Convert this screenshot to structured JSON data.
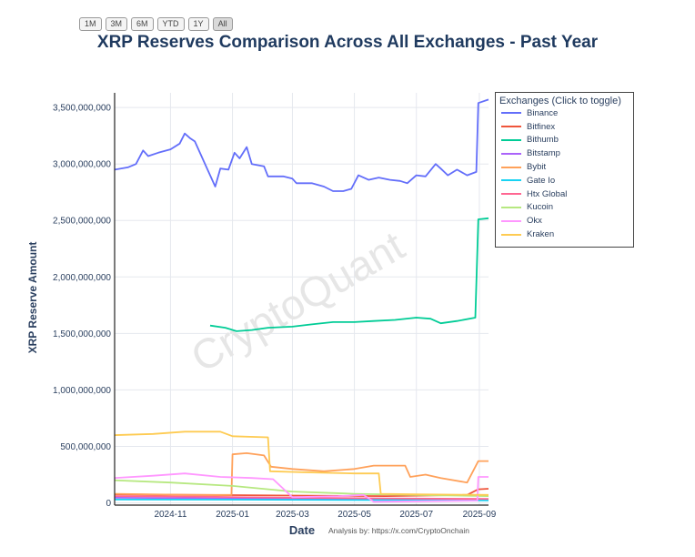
{
  "range_buttons": [
    "1M",
    "3M",
    "6M",
    "YTD",
    "1Y",
    "All"
  ],
  "active_range": "All",
  "credit": "Analysis by: https://x.com/CryptoOnchain",
  "watermark": "CryptoQuant",
  "chart_data": {
    "type": "line",
    "title": "XRP Reserves Comparison Across All Exchanges - Past Year",
    "xlabel": "Date",
    "ylabel": "XRP Reserve Amount",
    "legend_title": "Exchanges (Click to toggle)",
    "legend_position": "right",
    "grid": true,
    "x_range": [
      "2024-09-07",
      "2025-09-10"
    ],
    "ylim": [
      -20000000,
      3630000000
    ],
    "x_ticks": [
      "2024-11",
      "2025-01",
      "2025-03",
      "2025-05",
      "2025-07",
      "2025-09"
    ],
    "y_ticks": [
      {
        "value": 0,
        "label": "0"
      },
      {
        "value": 500000000,
        "label": "500,000,000"
      },
      {
        "value": 1000000000,
        "label": "1,000,000,000"
      },
      {
        "value": 1500000000,
        "label": "1,500,000,000"
      },
      {
        "value": 2000000000,
        "label": "2,000,000,000"
      },
      {
        "value": 2500000000,
        "label": "2,500,000,000"
      },
      {
        "value": 3000000000,
        "label": "3,000,000,000"
      },
      {
        "value": 3500000000,
        "label": "3,500,000,000"
      }
    ],
    "series": [
      {
        "name": "Binance",
        "color": "#636efa",
        "points": [
          [
            "2024-09-07",
            2950000000
          ],
          [
            "2024-09-20",
            2970000000
          ],
          [
            "2024-09-28",
            3000000000
          ],
          [
            "2024-10-05",
            3120000000
          ],
          [
            "2024-10-10",
            3070000000
          ],
          [
            "2024-10-20",
            3100000000
          ],
          [
            "2024-11-01",
            3130000000
          ],
          [
            "2024-11-10",
            3180000000
          ],
          [
            "2024-11-15",
            3270000000
          ],
          [
            "2024-11-20",
            3230000000
          ],
          [
            "2024-11-25",
            3200000000
          ],
          [
            "2024-12-01",
            3080000000
          ],
          [
            "2024-12-05",
            3000000000
          ],
          [
            "2024-12-10",
            2900000000
          ],
          [
            "2024-12-15",
            2800000000
          ],
          [
            "2024-12-20",
            2960000000
          ],
          [
            "2024-12-28",
            2950000000
          ],
          [
            "2025-01-03",
            3100000000
          ],
          [
            "2025-01-08",
            3050000000
          ],
          [
            "2025-01-15",
            3150000000
          ],
          [
            "2025-01-20",
            3000000000
          ],
          [
            "2025-02-01",
            2980000000
          ],
          [
            "2025-02-05",
            2890000000
          ],
          [
            "2025-02-20",
            2890000000
          ],
          [
            "2025-03-01",
            2870000000
          ],
          [
            "2025-03-05",
            2830000000
          ],
          [
            "2025-03-20",
            2830000000
          ],
          [
            "2025-04-01",
            2800000000
          ],
          [
            "2025-04-10",
            2760000000
          ],
          [
            "2025-04-20",
            2760000000
          ],
          [
            "2025-04-28",
            2780000000
          ],
          [
            "2025-05-05",
            2900000000
          ],
          [
            "2025-05-15",
            2860000000
          ],
          [
            "2025-05-25",
            2880000000
          ],
          [
            "2025-06-05",
            2860000000
          ],
          [
            "2025-06-15",
            2850000000
          ],
          [
            "2025-06-22",
            2830000000
          ],
          [
            "2025-07-01",
            2900000000
          ],
          [
            "2025-07-10",
            2890000000
          ],
          [
            "2025-07-20",
            3000000000
          ],
          [
            "2025-07-25",
            2960000000
          ],
          [
            "2025-08-01",
            2900000000
          ],
          [
            "2025-08-10",
            2950000000
          ],
          [
            "2025-08-20",
            2900000000
          ],
          [
            "2025-08-29",
            2930000000
          ],
          [
            "2025-08-31",
            3540000000
          ],
          [
            "2025-09-10",
            3570000000
          ]
        ]
      },
      {
        "name": "Bitfinex",
        "color": "#ef553b",
        "points": [
          [
            "2024-09-07",
            75000000
          ],
          [
            "2024-12-01",
            70000000
          ],
          [
            "2025-03-01",
            65000000
          ],
          [
            "2025-06-01",
            60000000
          ],
          [
            "2025-08-20",
            70000000
          ],
          [
            "2025-08-31",
            120000000
          ],
          [
            "2025-09-10",
            125000000
          ]
        ]
      },
      {
        "name": "Bithumb",
        "color": "#00cc96",
        "points": [
          [
            "2024-12-10",
            1570000000
          ],
          [
            "2024-12-25",
            1550000000
          ],
          [
            "2025-01-05",
            1520000000
          ],
          [
            "2025-01-20",
            1530000000
          ],
          [
            "2025-02-05",
            1550000000
          ],
          [
            "2025-03-01",
            1560000000
          ],
          [
            "2025-03-20",
            1580000000
          ],
          [
            "2025-04-10",
            1600000000
          ],
          [
            "2025-05-01",
            1600000000
          ],
          [
            "2025-05-20",
            1610000000
          ],
          [
            "2025-06-10",
            1620000000
          ],
          [
            "2025-07-01",
            1640000000
          ],
          [
            "2025-07-15",
            1630000000
          ],
          [
            "2025-07-25",
            1590000000
          ],
          [
            "2025-08-10",
            1610000000
          ],
          [
            "2025-08-28",
            1640000000
          ],
          [
            "2025-08-31",
            2510000000
          ],
          [
            "2025-09-10",
            2520000000
          ]
        ]
      },
      {
        "name": "Bitstamp",
        "color": "#ab63fa",
        "points": [
          [
            "2024-09-07",
            45000000
          ],
          [
            "2025-01-01",
            40000000
          ],
          [
            "2025-05-01",
            35000000
          ],
          [
            "2025-09-10",
            30000000
          ]
        ]
      },
      {
        "name": "Bybit",
        "color": "#ffa15a",
        "points": [
          [
            "2024-09-07",
            80000000
          ],
          [
            "2024-11-20",
            70000000
          ],
          [
            "2024-12-31",
            70000000
          ],
          [
            "2025-01-01",
            430000000
          ],
          [
            "2025-01-15",
            440000000
          ],
          [
            "2025-02-01",
            420000000
          ],
          [
            "2025-02-08",
            320000000
          ],
          [
            "2025-03-01",
            300000000
          ],
          [
            "2025-04-01",
            280000000
          ],
          [
            "2025-05-01",
            300000000
          ],
          [
            "2025-05-20",
            330000000
          ],
          [
            "2025-06-20",
            330000000
          ],
          [
            "2025-06-25",
            230000000
          ],
          [
            "2025-07-10",
            250000000
          ],
          [
            "2025-07-25",
            220000000
          ],
          [
            "2025-08-20",
            180000000
          ],
          [
            "2025-08-31",
            370000000
          ],
          [
            "2025-09-10",
            370000000
          ]
        ]
      },
      {
        "name": "Gate Io",
        "color": "#19d3f3",
        "points": [
          [
            "2024-09-07",
            30000000
          ],
          [
            "2025-01-01",
            28000000
          ],
          [
            "2025-05-01",
            25000000
          ],
          [
            "2025-09-10",
            22000000
          ]
        ]
      },
      {
        "name": "Htx Global",
        "color": "#ff6692",
        "points": [
          [
            "2024-09-07",
            60000000
          ],
          [
            "2024-12-01",
            55000000
          ],
          [
            "2025-03-01",
            45000000
          ],
          [
            "2025-06-01",
            40000000
          ],
          [
            "2025-09-10",
            35000000
          ]
        ]
      },
      {
        "name": "Kucoin",
        "color": "#b6e880",
        "points": [
          [
            "2024-09-07",
            200000000
          ],
          [
            "2024-11-01",
            180000000
          ],
          [
            "2025-01-01",
            150000000
          ],
          [
            "2025-03-01",
            100000000
          ],
          [
            "2025-05-01",
            80000000
          ],
          [
            "2025-07-01",
            70000000
          ],
          [
            "2025-09-10",
            60000000
          ]
        ]
      },
      {
        "name": "Okx",
        "color": "#ff97ff",
        "points": [
          [
            "2024-09-07",
            220000000
          ],
          [
            "2024-10-15",
            240000000
          ],
          [
            "2024-11-15",
            260000000
          ],
          [
            "2024-12-20",
            230000000
          ],
          [
            "2025-01-20",
            220000000
          ],
          [
            "2025-02-10",
            210000000
          ],
          [
            "2025-03-01",
            50000000
          ],
          [
            "2025-04-15",
            60000000
          ],
          [
            "2025-05-10",
            70000000
          ],
          [
            "2025-05-20",
            10000000
          ],
          [
            "2025-08-30",
            20000000
          ],
          [
            "2025-08-31",
            230000000
          ],
          [
            "2025-09-10",
            230000000
          ]
        ]
      },
      {
        "name": "Kraken",
        "color": "#fecb52",
        "points": [
          [
            "2024-09-07",
            600000000
          ],
          [
            "2024-10-15",
            610000000
          ],
          [
            "2024-11-15",
            630000000
          ],
          [
            "2024-12-20",
            630000000
          ],
          [
            "2025-01-01",
            590000000
          ],
          [
            "2025-02-05",
            580000000
          ],
          [
            "2025-02-07",
            280000000
          ],
          [
            "2025-03-15",
            270000000
          ],
          [
            "2025-05-01",
            260000000
          ],
          [
            "2025-05-25",
            260000000
          ],
          [
            "2025-05-27",
            80000000
          ],
          [
            "2025-07-01",
            75000000
          ],
          [
            "2025-09-10",
            70000000
          ]
        ]
      }
    ]
  }
}
